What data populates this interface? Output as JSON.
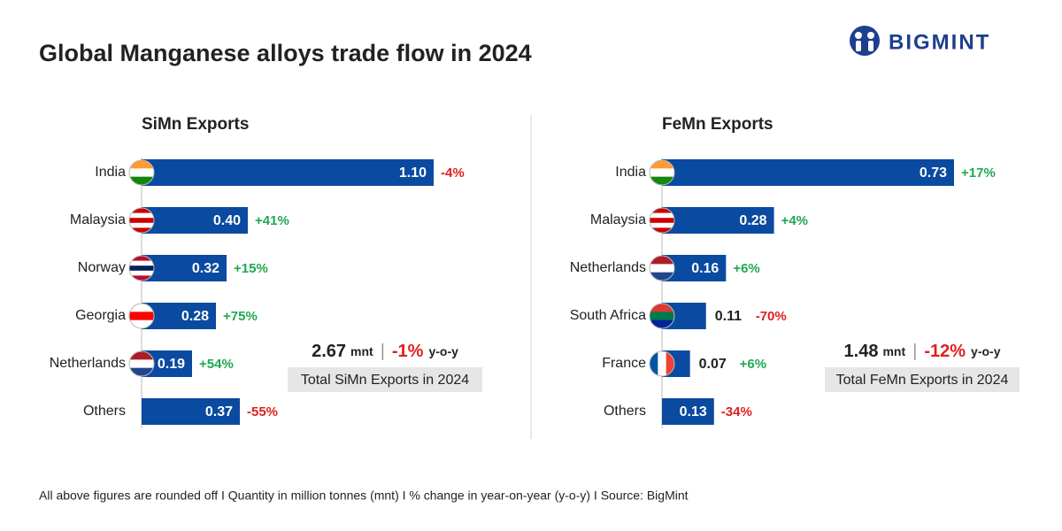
{
  "title": "Global Manganese alloys trade flow in 2024",
  "brand": "BIGMINT",
  "footnote": "All above figures are rounded off   I  Quantity in million tonnes (mnt)  I  % change in year-on-year (y-o-y)  I  Source: BigMint",
  "chart_data": [
    {
      "type": "bar",
      "title": "SiMn Exports",
      "color": "#0a4aa0",
      "positive_color": "#1fa84f",
      "negative_color": "#e02020",
      "categories": [
        "India",
        "Malaysia",
        "Norway",
        "Georgia",
        "Netherlands",
        "Others"
      ],
      "values": [
        1.1,
        0.4,
        0.32,
        0.28,
        0.19,
        0.37
      ],
      "value_labels": [
        "1.10",
        "0.40",
        "0.32",
        "0.28",
        "0.19",
        "0.37"
      ],
      "changes": [
        -4,
        41,
        15,
        75,
        54,
        -55
      ],
      "change_labels": [
        "-4%",
        "+41%",
        "+15%",
        "+75%",
        "+54%",
        "-55%"
      ],
      "total": {
        "value": 2.67,
        "unit": "mnt",
        "change": -1,
        "change_label": "-1%",
        "suffix": "y-o-y",
        "caption": "Total SiMn Exports in 2024"
      }
    },
    {
      "type": "bar",
      "title": "FeMn Exports",
      "color": "#0a4aa0",
      "positive_color": "#1fa84f",
      "negative_color": "#e02020",
      "categories": [
        "India",
        "Malaysia",
        "Netherlands",
        "South Africa",
        "France",
        "Others"
      ],
      "values": [
        0.73,
        0.28,
        0.16,
        0.11,
        0.07,
        0.13
      ],
      "changes": [
        17,
        4,
        6,
        -70,
        6,
        -34
      ],
      "change_labels": [
        "+17%",
        "+4%",
        "+6%",
        "-70%",
        "+6%",
        "-34%"
      ],
      "total": {
        "value": 1.48,
        "unit": "mnt",
        "change": -12,
        "change_label": "-12%",
        "suffix": "y-o-y",
        "caption": "Total FeMn Exports in 2024"
      }
    }
  ]
}
